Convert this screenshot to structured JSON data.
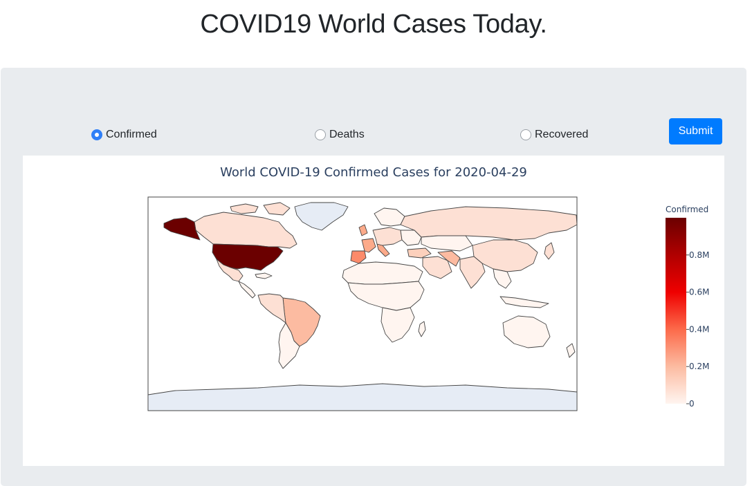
{
  "header": {
    "title": "COVID19 World Cases Today."
  },
  "controls": {
    "options": [
      {
        "label": "Confirmed",
        "checked": true
      },
      {
        "label": "Deaths",
        "checked": false
      },
      {
        "label": "Recovered",
        "checked": false
      }
    ],
    "submit_label": "Submit"
  },
  "chart_data": {
    "type": "choropleth",
    "title": "World COVID-19 Confirmed Cases for 2020-04-29",
    "colorbar": {
      "title": "Confirmed",
      "ticks": [
        "0",
        "0.2M",
        "0.4M",
        "0.6M",
        "0.8M"
      ],
      "tick_values": [
        0,
        200000,
        400000,
        600000,
        800000
      ],
      "range": [
        0,
        1000000
      ]
    },
    "colorscale": [
      "#fff5f0",
      "#fcbba1",
      "#fc6a4a",
      "#ef0000",
      "#b00000",
      "#6b0000"
    ],
    "ocean_color": "#ffffff",
    "no_data_color": "#e6ecf5"
  }
}
